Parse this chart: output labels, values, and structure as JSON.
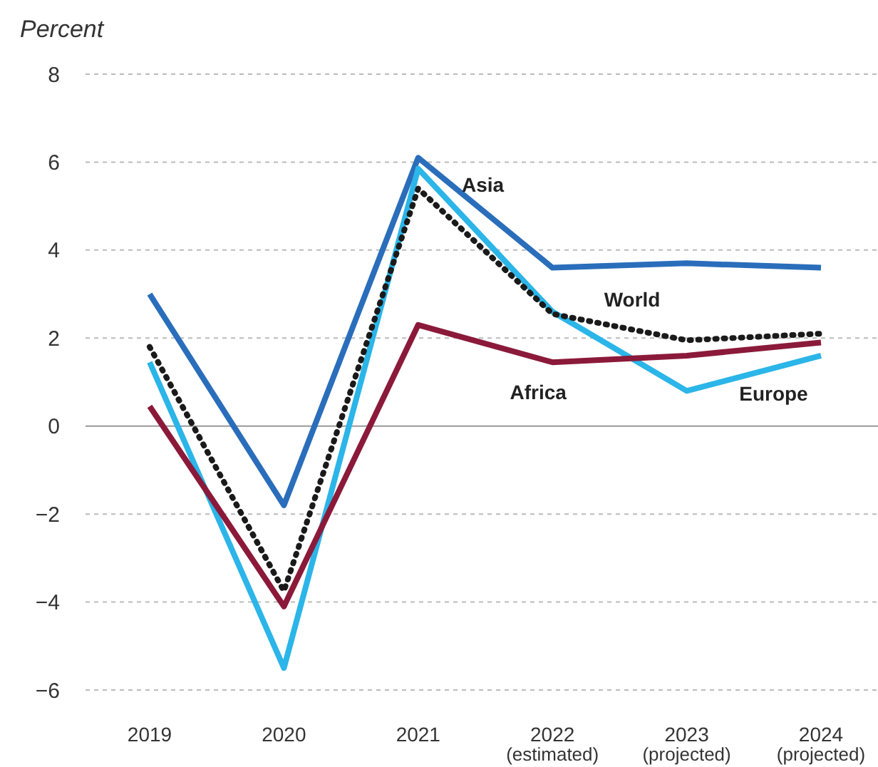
{
  "chart_data": {
    "type": "line",
    "ylabel": "Percent",
    "categories": [
      "2019",
      "2020",
      "2021",
      "2022\n(estimated)",
      "2023\n(projected)",
      "2024\n(projected)"
    ],
    "series": [
      {
        "name": "Asia",
        "color": "#2a6ebb",
        "values": [
          3.0,
          -1.8,
          6.1,
          3.6,
          3.7,
          3.6
        ]
      },
      {
        "name": "Europe",
        "color": "#2bb5e8",
        "values": [
          1.45,
          -5.5,
          5.85,
          2.6,
          0.8,
          1.6
        ]
      },
      {
        "name": "World",
        "color": "#1a1a1a",
        "line_style": "dotted",
        "values": [
          1.8,
          -3.75,
          5.4,
          2.55,
          1.95,
          2.1
        ]
      },
      {
        "name": "Africa",
        "color": "#8b1a3a",
        "values": [
          0.45,
          -4.1,
          2.3,
          1.45,
          1.6,
          1.9
        ]
      }
    ],
    "ylim": [
      -6,
      8
    ],
    "yticks": [
      8,
      6,
      4,
      2,
      0,
      -2,
      -4,
      -6
    ],
    "grid": "y",
    "line_style": "solid",
    "marker": "none"
  }
}
